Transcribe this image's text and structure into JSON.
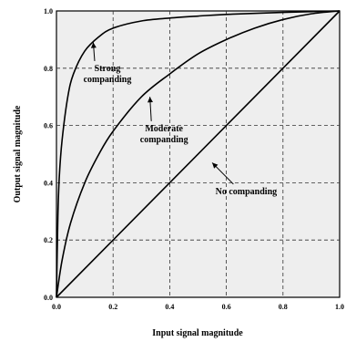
{
  "chart_data": {
    "type": "line",
    "title": "",
    "xlabel": "Input signal magnitude",
    "ylabel": "Output signal magnitude",
    "xlim": [
      0,
      1
    ],
    "ylim": [
      0,
      1
    ],
    "grid": true,
    "x_ticks": [
      {
        "value": 0,
        "label": "0.0"
      },
      {
        "value": 0.2,
        "label": "0.2"
      },
      {
        "value": 0.4,
        "label": "0.4"
      },
      {
        "value": 0.6,
        "label": "0.6"
      },
      {
        "value": 0.8,
        "label": "0.8"
      },
      {
        "value": 1.0,
        "label": "1.0"
      }
    ],
    "y_ticks": [
      {
        "value": 0,
        "label": "0.0"
      },
      {
        "value": 0.2,
        "label": "0.2"
      },
      {
        "value": 0.4,
        "label": "0.4"
      },
      {
        "value": 0.6,
        "label": "0.6"
      },
      {
        "value": 0.8,
        "label": "0.8"
      },
      {
        "value": 1.0,
        "label": "1.0"
      }
    ],
    "series": [
      {
        "key": "strong",
        "x": [
          0,
          0.005,
          0.01,
          0.02,
          0.04,
          0.06,
          0.1,
          0.15,
          0.2,
          0.3,
          0.4,
          0.5,
          0.6,
          0.8,
          1.0
        ],
        "y": [
          0,
          0.28,
          0.42,
          0.55,
          0.7,
          0.78,
          0.86,
          0.91,
          0.94,
          0.965,
          0.975,
          0.982,
          0.988,
          0.995,
          1.0
        ]
      },
      {
        "key": "moderate",
        "x": [
          0,
          0.02,
          0.05,
          0.1,
          0.15,
          0.2,
          0.3,
          0.4,
          0.5,
          0.6,
          0.7,
          0.8,
          0.9,
          1.0
        ],
        "y": [
          0,
          0.13,
          0.26,
          0.4,
          0.5,
          0.58,
          0.7,
          0.78,
          0.85,
          0.9,
          0.94,
          0.97,
          0.99,
          1.0
        ]
      },
      {
        "key": "none",
        "x": [
          0,
          1
        ],
        "y": [
          0,
          1
        ]
      }
    ],
    "annotations": [
      {
        "key": "strong",
        "lines": [
          "Strong",
          "companding"
        ],
        "text_x": 0.18,
        "text_y": 0.79,
        "arrow_to": [
          0.13,
          0.89
        ]
      },
      {
        "key": "moderate",
        "lines": [
          "Moderate",
          "companding"
        ],
        "text_x": 0.38,
        "text_y": 0.58,
        "arrow_to": [
          0.33,
          0.7
        ]
      },
      {
        "key": "none",
        "lines": [
          "No companding"
        ],
        "text_x": 0.67,
        "text_y": 0.36,
        "arrow_to": [
          0.55,
          0.47
        ]
      }
    ]
  }
}
